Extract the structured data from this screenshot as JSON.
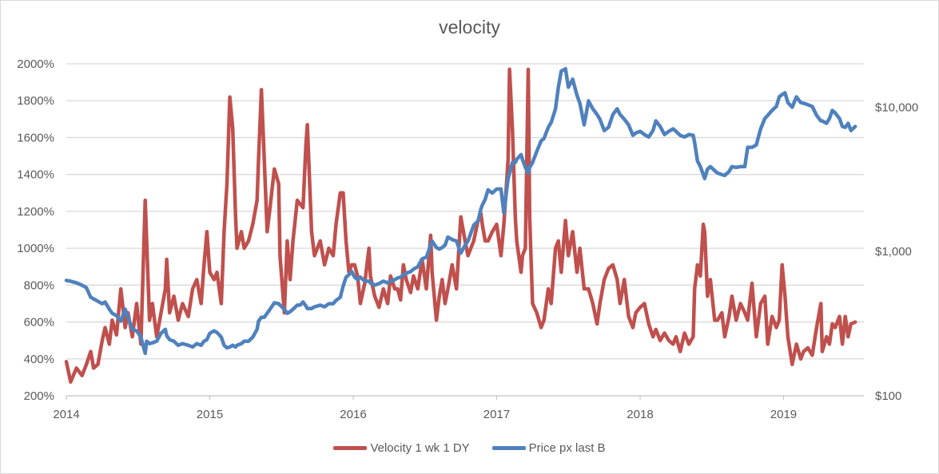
{
  "chart_data": {
    "type": "line",
    "title": "velocity",
    "xlabel": "",
    "ylabel": "",
    "grid": true,
    "legend_position": "bottom",
    "xlim": [
      2014,
      2019.56
    ],
    "x_ticks": [
      2014,
      2015,
      2016,
      2017,
      2018,
      2019
    ],
    "x_tick_labels": [
      "2014",
      "2015",
      "2016",
      "2017",
      "2018",
      "2019"
    ],
    "ylim": [
      200,
      2000
    ],
    "y_ticks": [
      200,
      400,
      600,
      800,
      1000,
      1200,
      1400,
      1600,
      1800,
      2000
    ],
    "y_tick_labels": [
      "200%",
      "400%",
      "600%",
      "800%",
      "1000%",
      "1200%",
      "1400%",
      "1600%",
      "1800%",
      "2000%"
    ],
    "y2_scale": "log",
    "y2lim": [
      100,
      20000
    ],
    "y2_ticks": [
      100,
      1000,
      10000
    ],
    "y2_tick_labels": [
      "$100",
      "$1,000",
      "$10,000"
    ],
    "x": [
      2014.0,
      2014.03,
      2014.07,
      2014.11,
      2014.14,
      2014.17,
      2014.19,
      2014.22,
      2014.25,
      2014.27,
      2014.3,
      2014.32,
      2014.35,
      2014.38,
      2014.41,
      2014.43,
      2014.46,
      2014.49,
      2014.52,
      2014.55,
      2014.56,
      2014.58,
      2014.6,
      2014.63,
      2014.66,
      2014.69,
      2014.7,
      2014.72,
      2014.75,
      2014.78,
      2014.81,
      2014.85,
      2014.88,
      2014.91,
      2014.94,
      2014.96,
      2014.98,
      2015.0,
      2015.03,
      2015.05,
      2015.08,
      2015.1,
      2015.12,
      2015.14,
      2015.16,
      2015.18,
      2015.19,
      2015.22,
      2015.24,
      2015.27,
      2015.3,
      2015.33,
      2015.34,
      2015.36,
      2015.38,
      2015.4,
      2015.42,
      2015.45,
      2015.48,
      2015.49,
      2015.52,
      2015.54,
      2015.56,
      2015.58,
      2015.61,
      2015.63,
      2015.65,
      2015.67,
      2015.68,
      2015.71,
      2015.73,
      2015.75,
      2015.77,
      2015.8,
      2015.83,
      2015.86,
      2015.88,
      2015.91,
      2015.93,
      2015.95,
      2015.97,
      2015.99,
      2016.01,
      2016.03,
      2016.05,
      2016.08,
      2016.11,
      2016.12,
      2016.15,
      2016.18,
      2016.21,
      2016.24,
      2016.26,
      2016.29,
      2016.31,
      2016.33,
      2016.35,
      2016.37,
      2016.4,
      2016.42,
      2016.45,
      2016.48,
      2016.51,
      2016.54,
      2016.55,
      2016.58,
      2016.6,
      2016.62,
      2016.64,
      2016.66,
      2016.69,
      2016.72,
      2016.75,
      2016.78,
      2016.8,
      2016.82,
      2016.84,
      2016.87,
      2016.89,
      2016.9,
      2016.92,
      2016.94,
      2016.97,
      2017.0,
      2017.03,
      2017.05,
      2017.08,
      2017.09,
      2017.11,
      2017.13,
      2017.14,
      2017.17,
      2017.18,
      2017.2,
      2017.22,
      2017.23,
      2017.25,
      2017.28,
      2017.31,
      2017.33,
      2017.36,
      2017.38,
      2017.41,
      2017.43,
      2017.45,
      2017.48,
      2017.5,
      2017.53,
      2017.56,
      2017.58,
      2017.61,
      2017.64,
      2017.67,
      2017.7,
      2017.72,
      2017.75,
      2017.78,
      2017.81,
      2017.84,
      2017.86,
      2017.89,
      2017.92,
      2017.95,
      2017.97,
      2018.0,
      2018.03,
      2018.06,
      2018.09,
      2018.11,
      2018.14,
      2018.17,
      2018.2,
      2018.23,
      2018.25,
      2018.28,
      2018.31,
      2018.34,
      2018.37,
      2018.38,
      2018.4,
      2018.42,
      2018.44,
      2018.45,
      2018.47,
      2018.49,
      2018.52,
      2018.54,
      2018.57,
      2018.59,
      2018.62,
      2018.64,
      2018.67,
      2018.7,
      2018.73,
      2018.75,
      2018.78,
      2018.81,
      2018.84,
      2018.87,
      2018.89,
      2018.92,
      2018.95,
      2018.97,
      2018.99,
      2019.01,
      2019.03,
      2019.06,
      2019.09,
      2019.12,
      2019.14,
      2019.17,
      2019.2,
      2019.23,
      2019.26,
      2019.27,
      2019.3,
      2019.32,
      2019.34,
      2019.36,
      2019.39,
      2019.41,
      2019.43,
      2019.45,
      2019.47,
      2019.5
    ],
    "series": [
      {
        "name": "Velocity 1 wk 1 DY",
        "axis": "left",
        "unit": "%",
        "color": "#c0504d",
        "values": [
          385,
          275,
          350,
          310,
          370,
          440,
          350,
          370,
          500,
          570,
          480,
          610,
          530,
          780,
          570,
          650,
          520,
          700,
          480,
          1260,
          1040,
          610,
          700,
          520,
          650,
          780,
          940,
          650,
          740,
          610,
          700,
          630,
          780,
          830,
          700,
          910,
          1090,
          870,
          830,
          870,
          700,
          1090,
          1350,
          1820,
          1650,
          1170,
          1000,
          1090,
          1000,
          1040,
          1130,
          1260,
          1480,
          1860,
          1480,
          1090,
          1220,
          1430,
          1350,
          960,
          650,
          1040,
          830,
          1040,
          1260,
          1240,
          1220,
          1560,
          1670,
          1090,
          960,
          1000,
          1040,
          910,
          1000,
          960,
          1130,
          1300,
          1300,
          1040,
          870,
          910,
          910,
          850,
          700,
          810,
          1000,
          850,
          740,
          680,
          780,
          700,
          850,
          780,
          780,
          720,
          910,
          830,
          760,
          850,
          780,
          940,
          780,
          1070,
          870,
          610,
          740,
          830,
          700,
          780,
          910,
          780,
          1170,
          1040,
          960,
          1000,
          1040,
          1150,
          1190,
          1130,
          1040,
          1040,
          1090,
          1130,
          960,
          1130,
          1480,
          1970,
          1650,
          1170,
          1040,
          870,
          960,
          1000,
          1970,
          1170,
          700,
          650,
          570,
          610,
          780,
          700,
          1000,
          1040,
          870,
          1150,
          960,
          1090,
          870,
          1000,
          780,
          780,
          700,
          590,
          700,
          830,
          890,
          910,
          830,
          700,
          830,
          630,
          570,
          650,
          680,
          700,
          590,
          520,
          560,
          500,
          540,
          500,
          480,
          520,
          440,
          540,
          480,
          520,
          780,
          910,
          850,
          1130,
          1090,
          740,
          830,
          610,
          610,
          650,
          520,
          630,
          740,
          610,
          700,
          650,
          610,
          810,
          520,
          700,
          740,
          480,
          630,
          570,
          610,
          910,
          740,
          520,
          370,
          480,
          400,
          440,
          460,
          420,
          570,
          700,
          440,
          520,
          480,
          590,
          570,
          630,
          480,
          630,
          520,
          590,
          600
        ]
      },
      {
        "name": "Price  px last B",
        "axis": "right",
        "unit": "$",
        "color": "#4f81bd",
        "values": [
          631,
          623,
          607,
          584,
          562,
          482,
          470,
          452,
          435,
          447,
          398,
          373,
          359,
          329,
          398,
          350,
          289,
          282,
          255,
          197,
          239,
          230,
          233,
          239,
          271,
          289,
          261,
          245,
          239,
          224,
          230,
          224,
          218,
          230,
          224,
          239,
          245,
          271,
          282,
          275,
          255,
          224,
          215,
          218,
          224,
          218,
          224,
          230,
          239,
          239,
          255,
          289,
          329,
          350,
          350,
          373,
          398,
          441,
          435,
          425,
          398,
          373,
          383,
          398,
          425,
          425,
          447,
          419,
          403,
          403,
          414,
          419,
          425,
          414,
          435,
          435,
          458,
          482,
          577,
          664,
          690,
          726,
          664,
          639,
          664,
          623,
          623,
          607,
          584,
          600,
          623,
          607,
          623,
          639,
          656,
          664,
          690,
          707,
          726,
          755,
          784,
          891,
          914,
          1107,
          1181,
          1066,
          1040,
          1066,
          1107,
          1259,
          1211,
          1181,
          975,
          1107,
          1181,
          1342,
          1525,
          1626,
          1968,
          2100,
          2297,
          2677,
          2545,
          2712,
          2712,
          1849,
          3204,
          3500,
          4140,
          4140,
          4355,
          4699,
          4355,
          3830,
          3500,
          3830,
          4140,
          4944,
          5848,
          6069,
          7263,
          7834,
          9750,
          13770,
          17780,
          18480,
          13770,
          15640,
          12110,
          10660,
          7551,
          11070,
          9750,
          8913,
          8260,
          6898,
          7263,
          8913,
          9750,
          8913,
          8260,
          7551,
          6390,
          6640,
          6810,
          6470,
          6230,
          6900,
          8050,
          7360,
          6470,
          6810,
          7080,
          6810,
          6390,
          6230,
          6470,
          6390,
          5700,
          4245,
          3880,
          3415,
          3205,
          3730,
          3880,
          3640,
          3500,
          3415,
          3370,
          3590,
          3880,
          3830,
          3880,
          3880,
          5275,
          5275,
          5480,
          7080,
          8360,
          8790,
          9510,
          10130,
          11800,
          12270,
          12590,
          10790,
          10000,
          11800,
          10790,
          10660,
          10400,
          10130,
          8790,
          8050,
          8050,
          7740,
          8360,
          9510,
          9140,
          8360,
          7360,
          7260,
          7740,
          6900,
          7360
        ]
      }
    ]
  },
  "colors": {
    "gridline": "#d9d9d9",
    "text": "#595959"
  }
}
